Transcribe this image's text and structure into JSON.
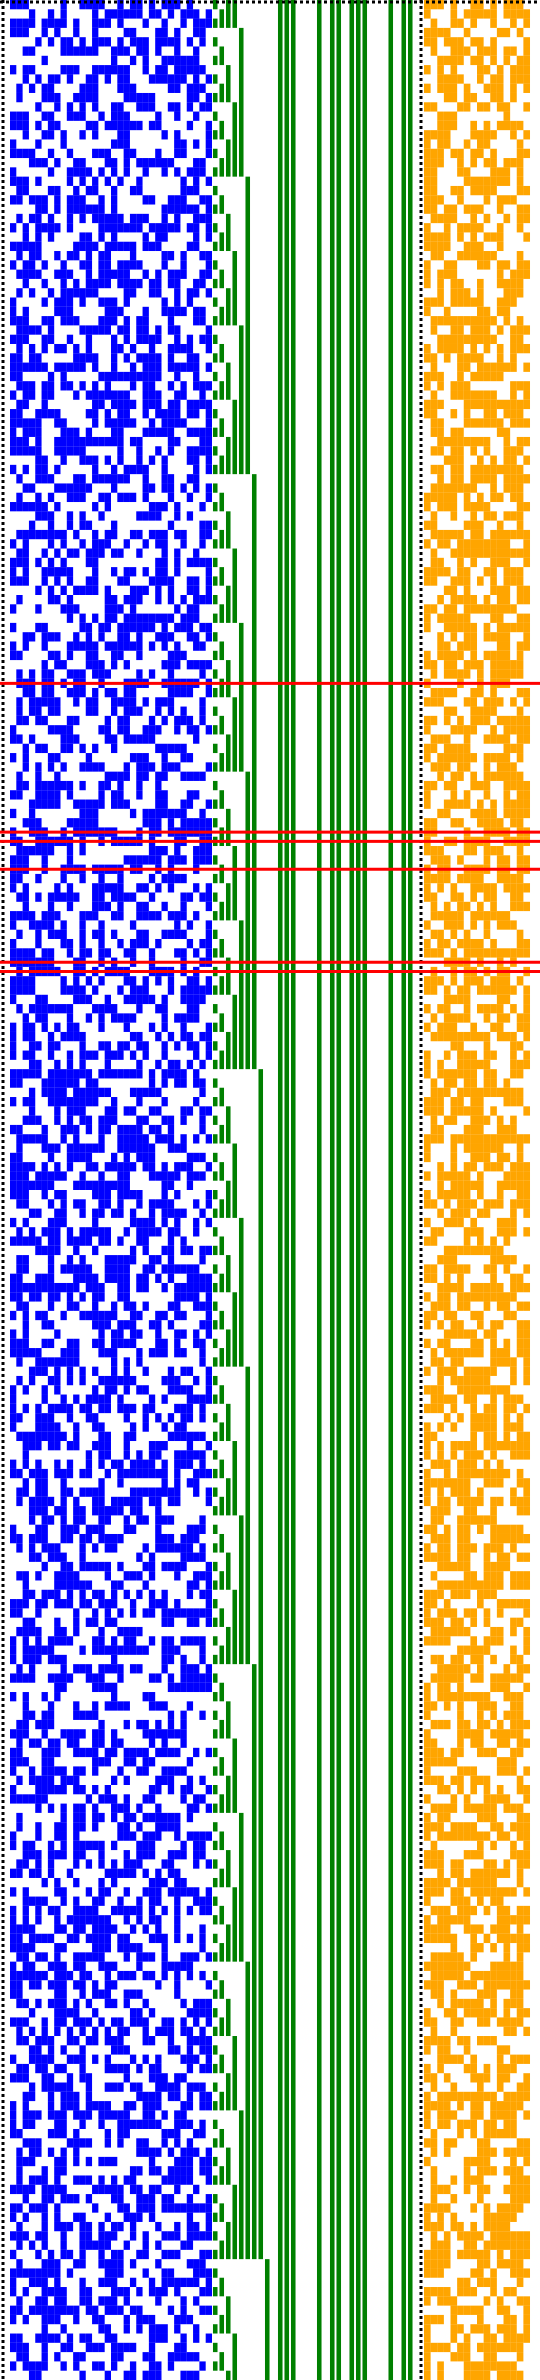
{
  "colors": {
    "background": "#ffffff",
    "dotted_border": "#000000",
    "random_bits": "#0000ff",
    "counter_bits": "#008000",
    "xor_bits": "#ffa500",
    "marker_lines": "#ff0000"
  },
  "grid": {
    "rows": 256,
    "random_columns": 32,
    "counter_columns": 32,
    "xor_columns": 16,
    "density_random": 0.5,
    "density_xor": 0.6
  },
  "marked_rows": [
    73,
    89,
    90,
    93,
    103,
    104
  ]
}
